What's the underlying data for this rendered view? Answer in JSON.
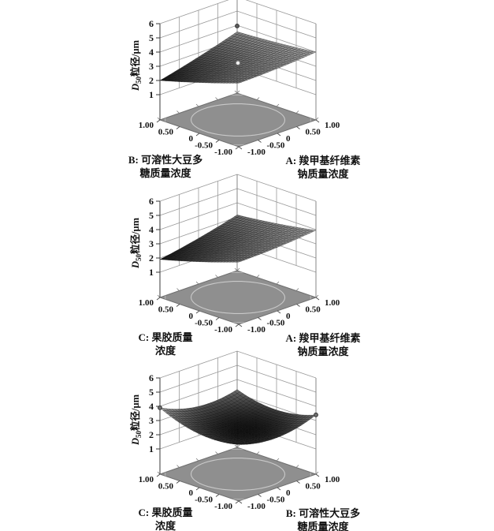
{
  "figure": {
    "background": "#ffffff",
    "description_visible_text_only": ""
  },
  "style": {
    "floor": "#8f8f8f",
    "floor_edge": "#6f6f6f",
    "contour": "#d4d4d4",
    "wall_grid": "#9a9a9a",
    "axis_line": "#3a3a3a",
    "tick_text": "#111111",
    "surface_stroke": "#000000",
    "surface_dark_gray": 16,
    "surface_light_gray": 166
  },
  "chart_data": [
    {
      "type": "surface3d",
      "panel": "top",
      "zlabel": {
        "var": "D",
        "sub": "50",
        "rest": "粒径/μm",
        "full": "D50粒径/μm"
      },
      "zlim": [
        1,
        6
      ],
      "zticks": [
        "1",
        "2",
        "3",
        "4",
        "5",
        "6"
      ],
      "axis_left": {
        "name_lines": [
          "B: 可溶性大豆多",
          "糖质量浓度"
        ],
        "ticks": [
          "1.00",
          "0.50",
          "0",
          "-0.50",
          "-1.00"
        ],
        "tick_values": [
          1,
          0.5,
          0,
          -0.5,
          -1
        ]
      },
      "axis_right": {
        "name_lines": [
          "A: 羧甲基纤维素",
          "钠质量浓度"
        ],
        "ticks": [
          "-1.00",
          "-0.50",
          "0",
          "0.50",
          "1.00"
        ],
        "tick_values": [
          -1,
          -0.5,
          0,
          0.5,
          1
        ]
      },
      "grid_u": [
        -1,
        -0.5,
        0,
        0.5,
        1
      ],
      "grid_v": [
        -1,
        -0.5,
        0,
        0.5,
        1
      ],
      "z_grid_rows": "v=-1..1",
      "z_grid_cols": "u=-1..1",
      "z_grid": [
        [
          3.7,
          3.73,
          3.79,
          3.88,
          4.0
        ],
        [
          3.24,
          3.34,
          3.48,
          3.65,
          3.85
        ],
        [
          2.8,
          2.98,
          3.2,
          3.45,
          3.72
        ],
        [
          2.39,
          2.65,
          2.94,
          3.27,
          3.62
        ],
        [
          2.0,
          2.34,
          2.71,
          3.12,
          3.55
        ]
      ],
      "model": {
        "b0": 3.2,
        "bu": 0.4625,
        "bv": -0.5375,
        "buv": 0.3125,
        "buu": 0.06,
        "bvv": 0.05
      },
      "design_points": [
        {
          "u": 1,
          "v": 1,
          "z": 3.95,
          "fill": "#5a5a5a",
          "stroke": "#2a2a2a"
        },
        {
          "u": 0,
          "v": 0,
          "z": 3.23,
          "fill": "#f2f2f2",
          "stroke": "#8a8a8a"
        }
      ]
    },
    {
      "type": "surface3d",
      "panel": "middle",
      "zlabel": {
        "var": "D",
        "sub": "50",
        "rest": "粒径/μm",
        "full": "D50粒径/μm"
      },
      "zlim": [
        1,
        6
      ],
      "zticks": [
        "1",
        "2",
        "3",
        "4",
        "5",
        "6"
      ],
      "axis_left": {
        "name_lines": [
          "C: 果胶质量",
          "浓度"
        ],
        "ticks": [
          "1.00",
          "0.50",
          "0",
          "-0.50",
          "-1.00"
        ],
        "tick_values": [
          1,
          0.5,
          0,
          -0.5,
          -1
        ]
      },
      "axis_right": {
        "name_lines": [
          "A: 羧甲基纤维素",
          "钠质量浓度"
        ],
        "ticks": [
          "-1.00",
          "-0.50",
          "0",
          "0.50",
          "1.00"
        ],
        "tick_values": [
          -1,
          -0.5,
          0,
          0.5,
          1
        ]
      },
      "grid_u": [
        -1,
        -0.5,
        0,
        0.5,
        1
      ],
      "grid_v": [
        -1,
        -0.5,
        0,
        0.5,
        1
      ],
      "z_grid_rows": "v=-1..1",
      "z_grid_cols": "u=-1..1",
      "z_grid": [
        [
          3.6,
          3.63,
          3.7,
          3.8,
          3.95
        ],
        [
          3.12,
          3.21,
          3.33,
          3.49,
          3.7
        ],
        [
          2.68,
          2.82,
          3.0,
          3.22,
          3.48
        ],
        [
          2.27,
          2.47,
          2.71,
          2.98,
          3.3
        ],
        [
          1.9,
          2.15,
          2.45,
          2.78,
          3.15
        ]
      ],
      "model": {
        "b0": 3.0,
        "bu": 0.4,
        "bv": -0.625,
        "buv": 0.225,
        "buu": 0.08,
        "bvv": 0.07
      },
      "design_points": []
    },
    {
      "type": "surface3d",
      "panel": "bottom",
      "zlabel": {
        "var": "D",
        "sub": "50",
        "rest": "粒径/μm",
        "full": "D50粒径/μm"
      },
      "zlim": [
        1,
        6
      ],
      "zticks": [
        "1",
        "2",
        "3",
        "4",
        "5",
        "6"
      ],
      "axis_left": {
        "name_lines": [
          "C: 果胶质量",
          "浓度"
        ],
        "ticks": [
          "1.00",
          "0.50",
          "0",
          "-0.50",
          "-1.00"
        ],
        "tick_values": [
          1,
          0.5,
          0,
          -0.5,
          -1
        ]
      },
      "axis_right": {
        "name_lines": [
          "B: 可溶性大豆多",
          "糖质量浓度"
        ],
        "ticks": [
          "-1.00",
          "-0.50",
          "0",
          "0.50",
          "1.00"
        ],
        "tick_values": [
          -1,
          -0.5,
          0,
          0.5,
          1
        ]
      },
      "grid_u": [
        -1,
        -0.5,
        0,
        0.5,
        1
      ],
      "grid_v": [
        -1,
        -0.5,
        0,
        0.5,
        1
      ],
      "z_grid_rows": "v=-1..1",
      "z_grid_cols": "u=-1..1",
      "z_grid": [
        [
          3.2,
          2.84,
          2.75,
          2.94,
          3.4
        ],
        [
          2.96,
          2.55,
          2.41,
          2.55,
          2.96
        ],
        [
          3.0,
          2.54,
          2.35,
          2.44,
          2.8
        ],
        [
          3.31,
          2.8,
          2.56,
          2.6,
          2.91
        ],
        [
          3.9,
          3.34,
          3.05,
          3.04,
          3.3
        ]
      ],
      "model": {
        "b0": 2.35,
        "bu": -0.1,
        "bv": 0.15,
        "buv": -0.2,
        "buu": 0.55,
        "bvv": 0.55
      },
      "design_points": [
        {
          "u": -1,
          "v": 1,
          "z": 3.9,
          "fill": "#6e6e6e",
          "stroke": "#2a2a2a"
        },
        {
          "u": 1,
          "v": -1,
          "z": 3.4,
          "fill": "#6e6e6e",
          "stroke": "#2a2a2a"
        }
      ]
    }
  ]
}
